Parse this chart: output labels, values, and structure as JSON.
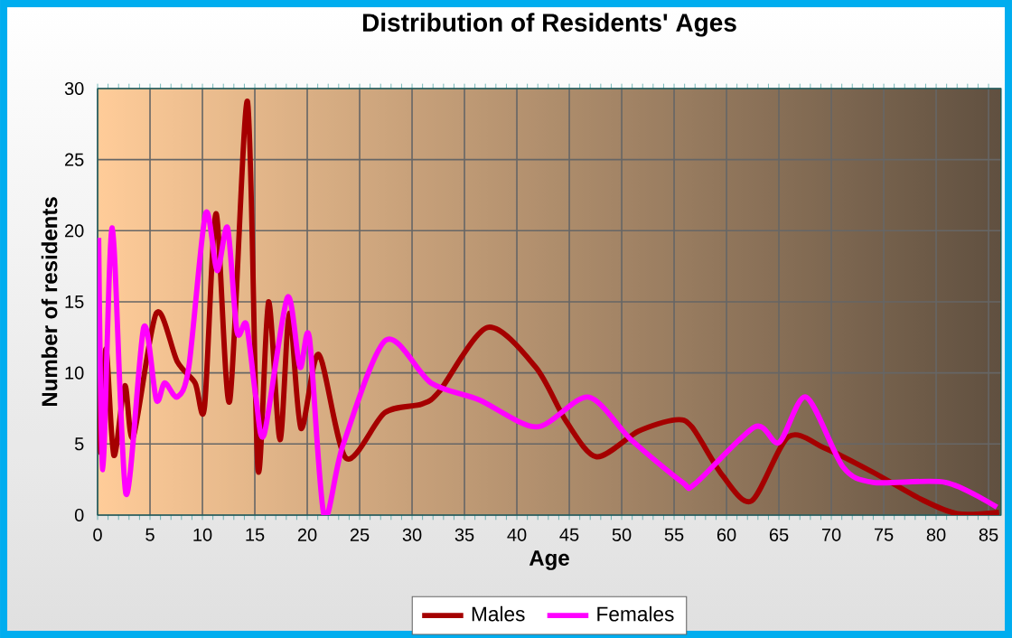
{
  "chart_data": {
    "type": "line",
    "title": "Distribution of Residents' Ages",
    "xlabel": "Age",
    "ylabel": "Number of residents",
    "series": [
      {
        "name": "Males",
        "color": "#a50000",
        "x": [
          0.1,
          0.3,
          0.8,
          1.55,
          2.6,
          3.4,
          5.6,
          7.6,
          9.3,
          10.2,
          11.3,
          12.6,
          14.3,
          15.3,
          16.3,
          17.4,
          18.3,
          19.4,
          21.1,
          23.7,
          27.4,
          30.9,
          32.6,
          37.2,
          41.8,
          44.7,
          47.6,
          51.6,
          55.1,
          56.7,
          59.6,
          62.4,
          65.9,
          69.4,
          74,
          78.6,
          82,
          86
        ],
        "values": [
          14.2,
          4.4,
          11.7,
          4.2,
          9.1,
          5.5,
          14.2,
          10.8,
          9.3,
          7.6,
          21.2,
          8.0,
          29.1,
          3.2,
          15.0,
          5.3,
          14.2,
          6.1,
          11.3,
          4.0,
          7.2,
          7.8,
          8.7,
          13.2,
          10.4,
          6.6,
          4.1,
          5.9,
          6.7,
          6.2,
          2.8,
          1.0,
          5.5,
          4.7,
          3.0,
          1.1,
          0.1,
          0.2
        ]
      },
      {
        "name": "Females",
        "color": "#ff00ff",
        "x": [
          0.1,
          0.5,
          1.4,
          2.7,
          4.4,
          5.6,
          6.4,
          7.6,
          8.7,
          10.3,
          11.4,
          12.4,
          13.3,
          14.2,
          15.1,
          15.9,
          18.1,
          19.3,
          20.2,
          21.6,
          23.4,
          27.5,
          31.8,
          36.4,
          41.9,
          46.8,
          50.9,
          55.8,
          57.0,
          62.7,
          65.0,
          67.6,
          71.1,
          74,
          80.9,
          85.8
        ],
        "values": [
          19.5,
          3.2,
          20.2,
          1.5,
          13.2,
          8.1,
          9.3,
          8.3,
          10.4,
          21.2,
          17.2,
          20.2,
          12.9,
          13.4,
          8.3,
          5.7,
          15.3,
          10.4,
          12.5,
          0,
          4.9,
          12.3,
          9.3,
          8.1,
          6.2,
          8.3,
          5.3,
          2.3,
          2.2,
          6.2,
          5.1,
          8.3,
          3.4,
          2.3,
          2.3,
          0.55
        ]
      }
    ],
    "xlim": [
      0,
      86.2
    ],
    "ylim": [
      0,
      30
    ],
    "xticks": [
      0,
      5,
      10,
      15,
      20,
      25,
      30,
      35,
      40,
      45,
      50,
      55,
      60,
      65,
      70,
      75,
      80,
      85
    ],
    "yticks": [
      0,
      5,
      10,
      15,
      20,
      25,
      30
    ],
    "grid": true,
    "legend": "bottom"
  }
}
